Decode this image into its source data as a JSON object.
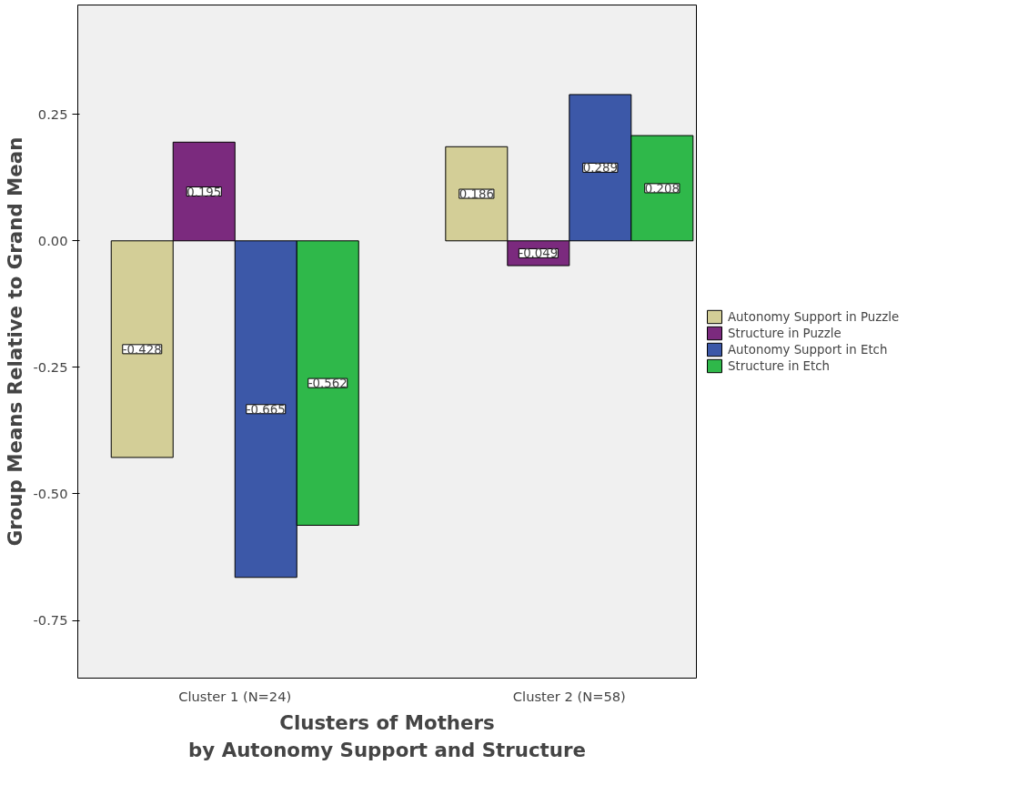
{
  "chart_data": {
    "type": "bar",
    "xlabel": "Clusters of Mothers\nby Autonomy Support and Structure",
    "ylabel": "Group Means Relative to Grand Mean",
    "categories": [
      "Cluster 1 (N=24)",
      "Cluster 2 (N=58)"
    ],
    "series": [
      {
        "name": "Autonomy Support in Puzzle",
        "color": "#d3ce97",
        "values": [
          -0.428,
          0.186
        ]
      },
      {
        "name": "Structure in Puzzle",
        "color": "#7b2a7e",
        "values": [
          0.195,
          -0.049
        ]
      },
      {
        "name": "Autonomy Support in Etch",
        "color": "#3c58a8",
        "values": [
          -0.665,
          0.289
        ]
      },
      {
        "name": "Structure in Etch",
        "color": "#2fb84a",
        "values": [
          -0.562,
          0.208
        ]
      }
    ],
    "ylim": [
      -0.864,
      0.466
    ],
    "yticks": [
      {
        "value": 0.25,
        "label": "0.25"
      },
      {
        "value": 0,
        "label": "0.00"
      },
      {
        "value": -0.25,
        "label": "-0.25"
      },
      {
        "value": -0.5,
        "label": "-0.50"
      },
      {
        "value": -0.75,
        "label": "-0.75"
      }
    ],
    "data_labels": true,
    "grid": false,
    "legend": "right"
  }
}
